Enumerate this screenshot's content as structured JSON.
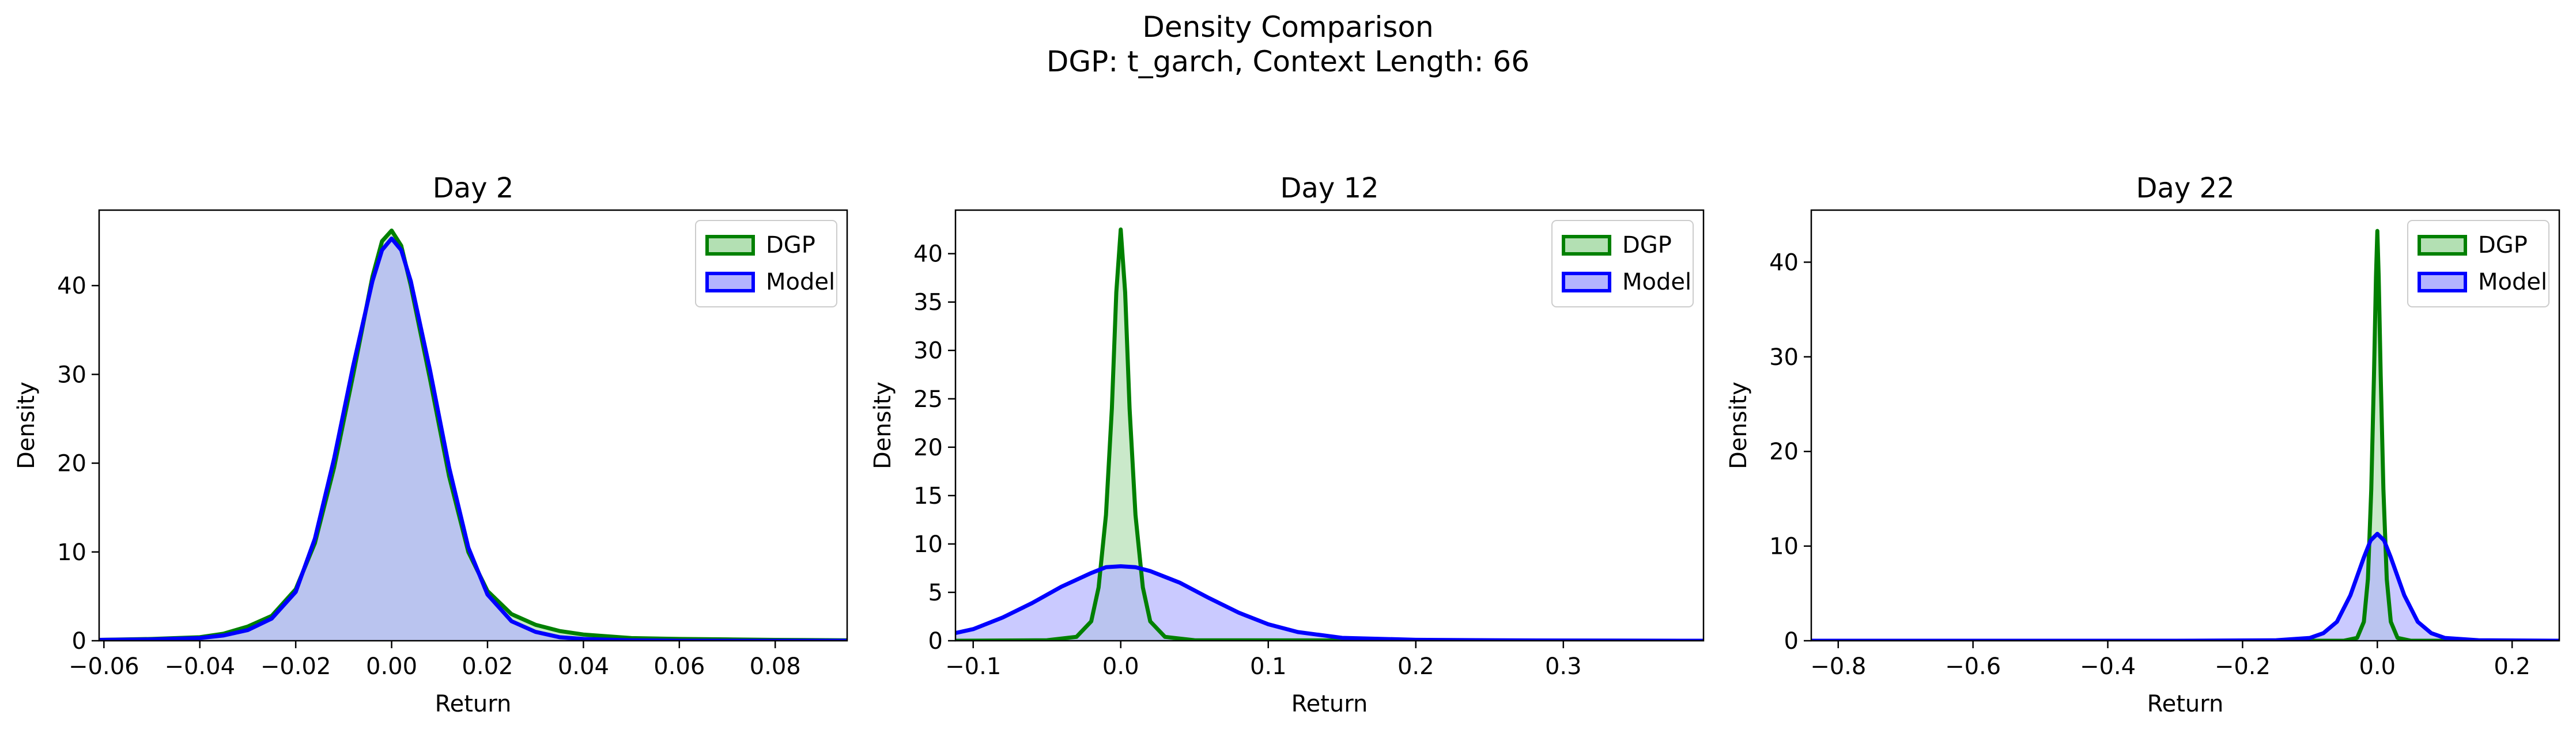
{
  "figure": {
    "title_line1": "Density Comparison",
    "title_line2": "DGP: t_garch, Context Length: 66"
  },
  "colors": {
    "dgp_line": "#008000",
    "dgp_fill": "#b3e0b3",
    "model_line": "#0000ff",
    "model_fill": "#b3b3ff",
    "overlap_fill": "#7f97c8"
  },
  "chart_data": [
    {
      "type": "area",
      "title": "Day 2",
      "xlabel": "Return",
      "ylabel": "Density",
      "xlim": [
        -0.061,
        0.095
      ],
      "ylim": [
        0,
        48.5
      ],
      "xticks": [
        -0.06,
        -0.04,
        -0.02,
        0.0,
        0.02,
        0.04,
        0.06,
        0.08
      ],
      "xtick_labels": [
        "−0.06",
        "−0.04",
        "−0.02",
        "0.00",
        "0.02",
        "0.04",
        "0.06",
        "0.08"
      ],
      "yticks": [
        0,
        10,
        20,
        30,
        40
      ],
      "ytick_labels": [
        "0",
        "10",
        "20",
        "30",
        "40"
      ],
      "legend": {
        "position": "upper right",
        "entries": [
          "DGP",
          "Model"
        ]
      },
      "series": [
        {
          "name": "DGP",
          "x": [
            -0.061,
            -0.05,
            -0.04,
            -0.035,
            -0.03,
            -0.025,
            -0.02,
            -0.016,
            -0.012,
            -0.008,
            -0.004,
            -0.002,
            0.0,
            0.002,
            0.004,
            0.008,
            0.012,
            0.016,
            0.02,
            0.025,
            0.03,
            0.035,
            0.04,
            0.05,
            0.06,
            0.07,
            0.08,
            0.095
          ],
          "y": [
            0.1,
            0.2,
            0.4,
            0.8,
            1.6,
            2.8,
            5.8,
            11.0,
            19.5,
            30.0,
            41.0,
            45.0,
            46.2,
            44.5,
            40.0,
            29.5,
            18.5,
            10.0,
            5.6,
            3.0,
            1.8,
            1.1,
            0.7,
            0.3,
            0.2,
            0.15,
            0.1,
            0.05
          ]
        },
        {
          "name": "Model",
          "x": [
            -0.061,
            -0.05,
            -0.04,
            -0.035,
            -0.03,
            -0.025,
            -0.02,
            -0.016,
            -0.012,
            -0.008,
            -0.004,
            -0.002,
            0.0,
            0.002,
            0.004,
            0.008,
            0.012,
            0.016,
            0.02,
            0.025,
            0.03,
            0.035,
            0.04,
            0.05,
            0.06,
            0.095
          ],
          "y": [
            0.1,
            0.15,
            0.3,
            0.6,
            1.2,
            2.5,
            5.5,
            11.5,
            20.5,
            31.0,
            40.5,
            44.0,
            45.3,
            44.0,
            40.5,
            30.5,
            19.5,
            10.5,
            5.2,
            2.2,
            1.0,
            0.4,
            0.2,
            0.05,
            0.0,
            0.0
          ]
        }
      ]
    },
    {
      "type": "area",
      "title": "Day 12",
      "xlabel": "Return",
      "ylabel": "Density",
      "xlim": [
        -0.112,
        0.395
      ],
      "ylim": [
        0,
        44.5
      ],
      "xticks": [
        -0.1,
        0.0,
        0.1,
        0.2,
        0.3
      ],
      "xtick_labels": [
        "−0.1",
        "0.0",
        "0.1",
        "0.2",
        "0.3"
      ],
      "yticks": [
        0,
        5,
        10,
        15,
        20,
        25,
        30,
        35,
        40
      ],
      "ytick_labels": [
        "0",
        "5",
        "10",
        "15",
        "20",
        "25",
        "30",
        "35",
        "40"
      ],
      "legend": {
        "position": "upper right",
        "entries": [
          "DGP",
          "Model"
        ]
      },
      "series": [
        {
          "name": "DGP",
          "x": [
            -0.112,
            -0.05,
            -0.03,
            -0.02,
            -0.015,
            -0.01,
            -0.006,
            -0.003,
            0.0,
            0.003,
            0.006,
            0.01,
            0.015,
            0.02,
            0.03,
            0.05,
            0.395
          ],
          "y": [
            0.0,
            0.05,
            0.4,
            2.0,
            5.5,
            13.0,
            24.0,
            36.0,
            42.5,
            36.0,
            24.0,
            13.0,
            5.5,
            2.0,
            0.4,
            0.05,
            0.0
          ]
        },
        {
          "name": "Model",
          "x": [
            -0.112,
            -0.1,
            -0.08,
            -0.06,
            -0.04,
            -0.02,
            -0.01,
            0.0,
            0.01,
            0.02,
            0.04,
            0.06,
            0.08,
            0.1,
            0.12,
            0.15,
            0.2,
            0.25,
            0.3,
            0.395
          ],
          "y": [
            0.8,
            1.2,
            2.4,
            3.9,
            5.6,
            7.0,
            7.6,
            7.7,
            7.6,
            7.2,
            6.0,
            4.4,
            2.9,
            1.7,
            0.9,
            0.3,
            0.1,
            0.05,
            0.02,
            0.0
          ]
        }
      ]
    },
    {
      "type": "area",
      "title": "Day 22",
      "xlabel": "Return",
      "ylabel": "Density",
      "xlim": [
        -0.84,
        0.27
      ],
      "ylim": [
        0,
        45.5
      ],
      "xticks": [
        -0.8,
        -0.6,
        -0.4,
        -0.2,
        0.0,
        0.2
      ],
      "xtick_labels": [
        "−0.8",
        "−0.6",
        "−0.4",
        "−0.2",
        "0.0",
        "0.2"
      ],
      "yticks": [
        0,
        10,
        20,
        30,
        40
      ],
      "ytick_labels": [
        "0",
        "10",
        "20",
        "30",
        "40"
      ],
      "legend": {
        "position": "upper right",
        "entries": [
          "DGP",
          "Model"
        ]
      },
      "series": [
        {
          "name": "DGP",
          "x": [
            -0.84,
            -0.05,
            -0.03,
            -0.02,
            -0.014,
            -0.009,
            -0.005,
            -0.002,
            0.0,
            0.002,
            0.005,
            0.009,
            0.014,
            0.02,
            0.03,
            0.05,
            0.27
          ],
          "y": [
            0.0,
            0.0,
            0.3,
            2.0,
            6.5,
            16.0,
            28.0,
            38.5,
            43.3,
            38.5,
            28.0,
            16.0,
            6.5,
            2.0,
            0.3,
            0.0,
            0.0
          ]
        },
        {
          "name": "Model",
          "x": [
            -0.84,
            -0.3,
            -0.15,
            -0.1,
            -0.08,
            -0.06,
            -0.04,
            -0.02,
            -0.01,
            0.0,
            0.01,
            0.02,
            0.04,
            0.06,
            0.08,
            0.1,
            0.15,
            0.27
          ],
          "y": [
            0.0,
            0.0,
            0.05,
            0.3,
            0.8,
            2.0,
            4.8,
            8.8,
            10.6,
            11.3,
            10.6,
            8.8,
            4.8,
            2.0,
            0.8,
            0.3,
            0.05,
            0.0
          ]
        }
      ]
    }
  ]
}
